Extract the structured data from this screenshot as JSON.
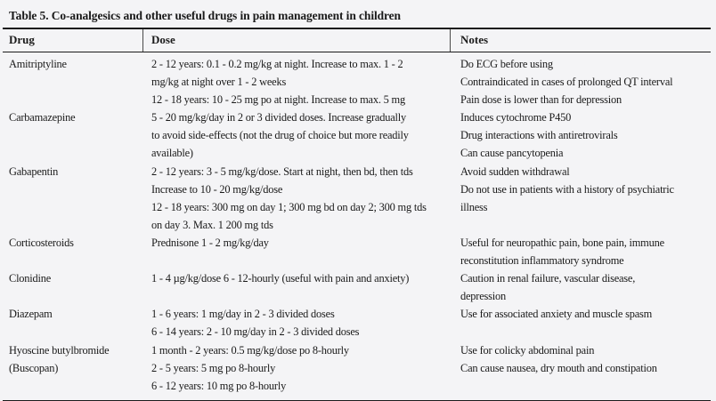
{
  "colors": {
    "background": "#f4f4f6",
    "ink": "#1a1a1a",
    "rule": "#1c1c1c"
  },
  "table": {
    "title": "Table 5. Co-analgesics and other useful drugs in pain management in children",
    "columns": [
      "Drug",
      "Dose",
      "Notes"
    ],
    "rows": [
      {
        "drug": [
          "Amitriptyline"
        ],
        "dose": [
          "2 - 12 years: 0.1 - 0.2 mg/kg at night. Increase to max. 1 - 2",
          "mg/kg at night over 1 - 2 weeks",
          "12 - 18 years: 10 - 25 mg po at night. Increase to max. 5 mg"
        ],
        "notes": [
          "Do ECG before using",
          "Contraindicated in cases of prolonged QT interval",
          "Pain dose is lower than for depression"
        ]
      },
      {
        "drug": [
          "Carbamazepine"
        ],
        "dose": [
          "5 - 20 mg/kg/day in 2 or 3 divided doses. Increase gradually",
          "to avoid side-effects (not the drug of choice but more readily",
          "available)"
        ],
        "notes": [
          "Induces cytochrome P450",
          "Drug interactions with antiretrovirals",
          "Can cause pancytopenia"
        ]
      },
      {
        "drug": [
          "Gabapentin"
        ],
        "dose": [
          "2 - 12 years: 3 - 5 mg/kg/dose. Start at night, then bd, then tds",
          "Increase to 10 - 20 mg/kg/dose",
          "12 - 18 years: 300 mg on day 1; 300 mg bd on day 2; 300 mg tds",
          "on day 3. Max. 1 200 mg tds"
        ],
        "notes": [
          "Avoid sudden withdrawal",
          "Do not use in patients with a history of psychiatric",
          "illness"
        ]
      },
      {
        "drug": [
          "Corticosteroids"
        ],
        "dose": [
          "Prednisone 1 - 2 mg/kg/day"
        ],
        "notes": [
          "Useful for neuropathic pain, bone pain, immune",
          "reconstitution inflammatory syndrome"
        ]
      },
      {
        "drug": [
          "Clonidine"
        ],
        "dose": [
          "1 - 4 µg/kg/dose 6 - 12-hourly (useful with pain and anxiety)"
        ],
        "notes": [
          "Caution in renal failure, vascular disease,",
          "depression"
        ]
      },
      {
        "drug": [
          "Diazepam"
        ],
        "dose": [
          "1 - 6 years: 1 mg/day in 2 - 3 divided doses",
          "6 - 14 years: 2 - 10 mg/day in 2 - 3 divided doses"
        ],
        "notes": [
          "Use for associated anxiety and muscle spasm"
        ]
      },
      {
        "drug": [
          "Hyoscine butylbromide",
          "(Buscopan)"
        ],
        "dose": [
          "1 month - 2 years: 0.5 mg/kg/dose po 8-hourly",
          "2 - 5 years: 5 mg po 8-hourly",
          "6 - 12 years: 10 mg po 8-hourly"
        ],
        "notes": [
          "Use for colicky abdominal pain",
          "Can cause nausea, dry mouth and constipation"
        ]
      }
    ]
  }
}
